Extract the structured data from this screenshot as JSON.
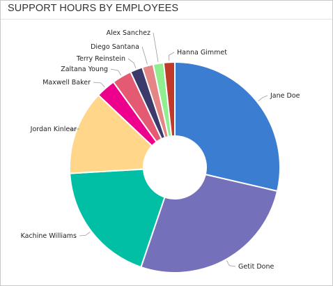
{
  "panel": {
    "title": "SUPPORT HOURS BY EMPLOYEES"
  },
  "chart_data": {
    "type": "pie",
    "style": "donut",
    "title": "SUPPORT HOURS BY EMPLOYEES",
    "legend": "none",
    "categories": [
      "Jane Doe",
      "Getit Done",
      "Kachine Williams",
      "Jordan Kinlear",
      "Maxwell Baker",
      "Zaltana Young",
      "Terry Reinstein",
      "Diego Santana",
      "Alex Sanchez",
      "Hanna Gimmet"
    ],
    "values": [
      28.5,
      26.5,
      18.8,
      12.9,
      3.0,
      3.0,
      1.9,
      1.7,
      1.6,
      1.7
    ],
    "colors": [
      "#3a7dd1",
      "#7570ba",
      "#00bfa5",
      "#ffd68a",
      "#ec008c",
      "#e55a73",
      "#3b3a6a",
      "#e58585",
      "#90ee90",
      "#c0392b"
    ]
  }
}
